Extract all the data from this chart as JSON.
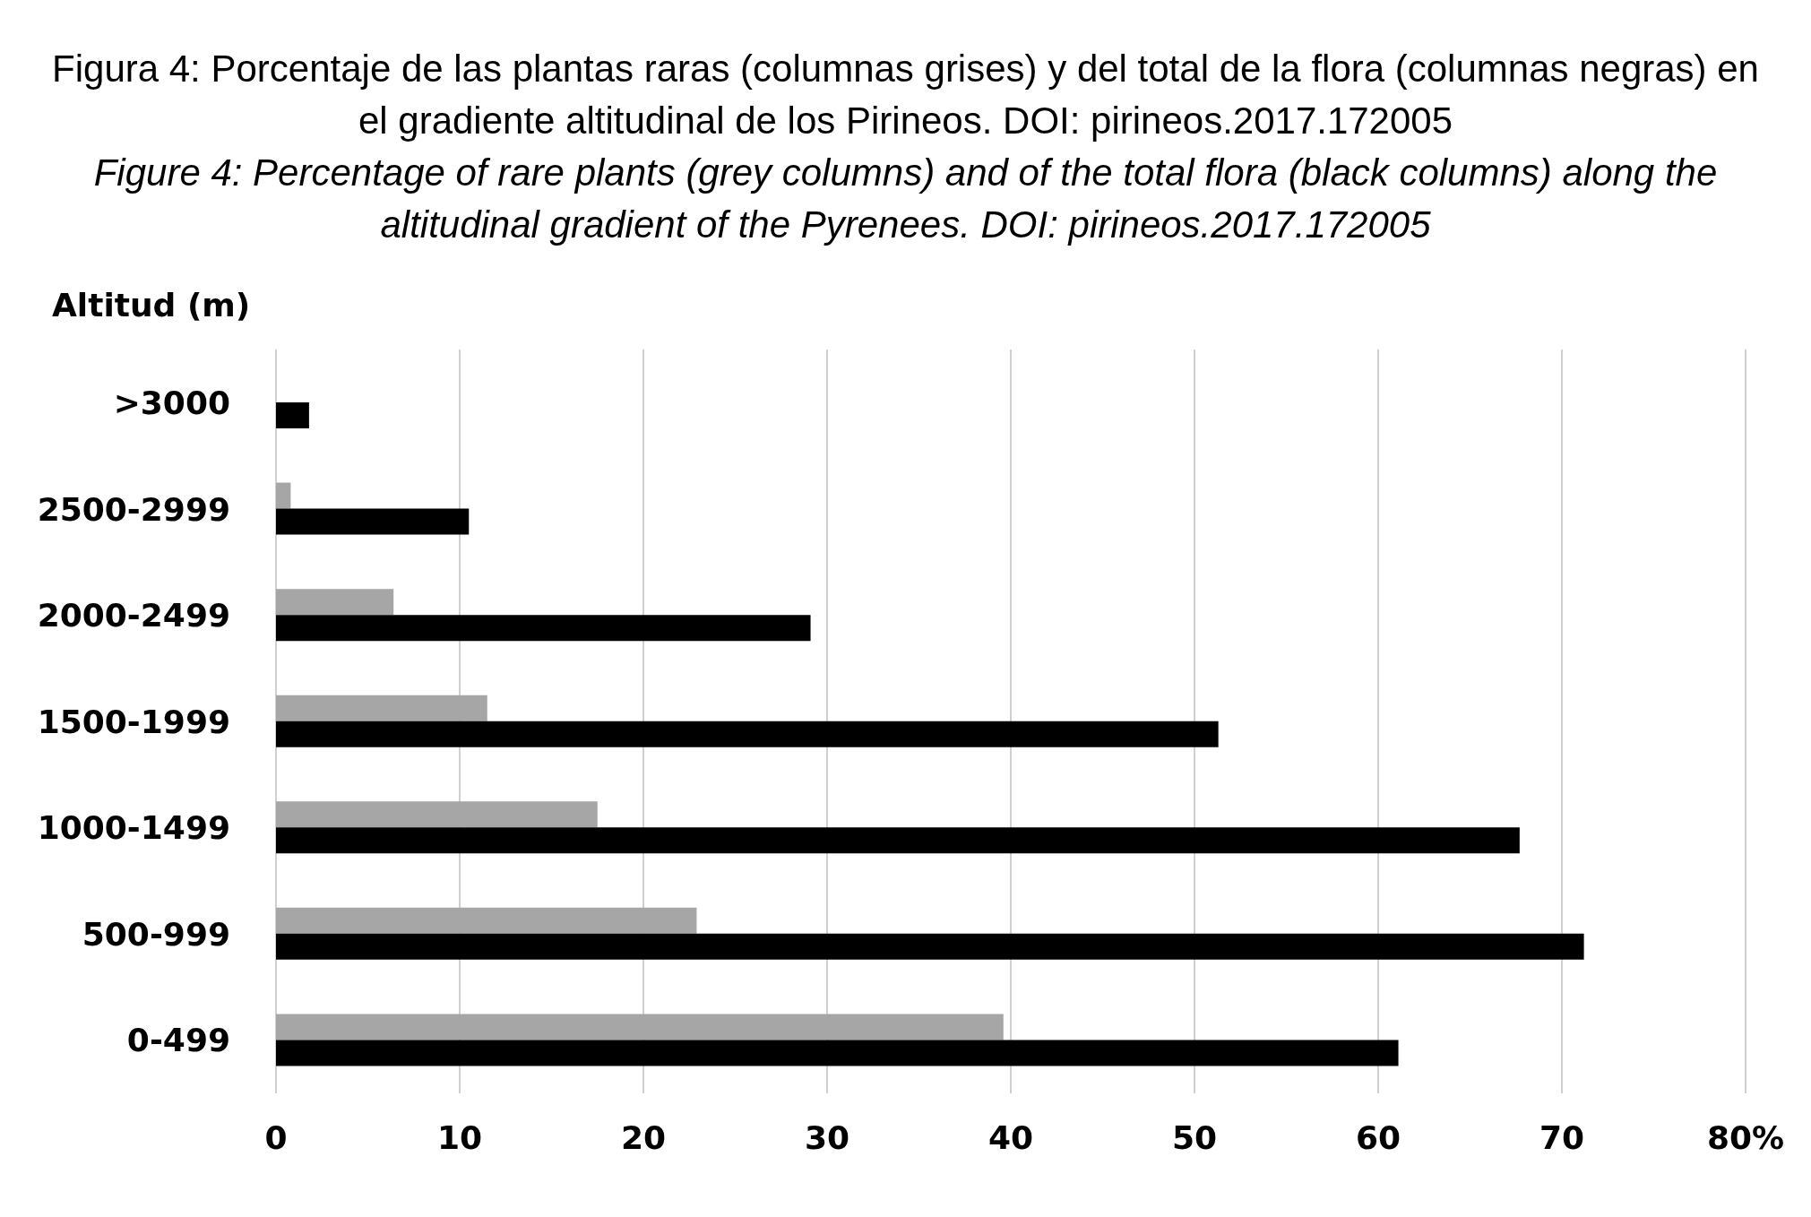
{
  "chart_data": {
    "type": "bar",
    "orientation": "horizontal",
    "title": "Figura 4: Porcentaje de las plantas raras (columnas grises) y del total de la flora (columnas negras) en el gradiente altitudinal de los Pirineos. DOI: pirineos.2017.172005",
    "subtitle": "Figure 4: Percentage of rare plants (grey columns) and of the total flora (black columns) along the altitudinal gradient of the Pyrenees. DOI: pirineos.2017.172005",
    "ylabel": "Altitud (m)",
    "categories": [
      ">3000",
      "2500-2999",
      "2000-2499",
      "1500-1999",
      "1000-1499",
      "500-999",
      "0-499"
    ],
    "series": [
      {
        "color": "#a6a6a6",
        "values": [
          null,
          0.8,
          6.4,
          11.5,
          17.5,
          22.9,
          39.6
        ]
      },
      {
        "color": "#000000",
        "values": [
          1.8,
          10.5,
          29.1,
          51.3,
          67.7,
          71.2,
          61.1
        ]
      }
    ],
    "xlim": [
      0,
      80
    ],
    "xticks": [
      0,
      10,
      20,
      30,
      40,
      50,
      60,
      70,
      {
        "value": 80,
        "label": "80%"
      }
    ],
    "grid": "x",
    "legend": false
  }
}
